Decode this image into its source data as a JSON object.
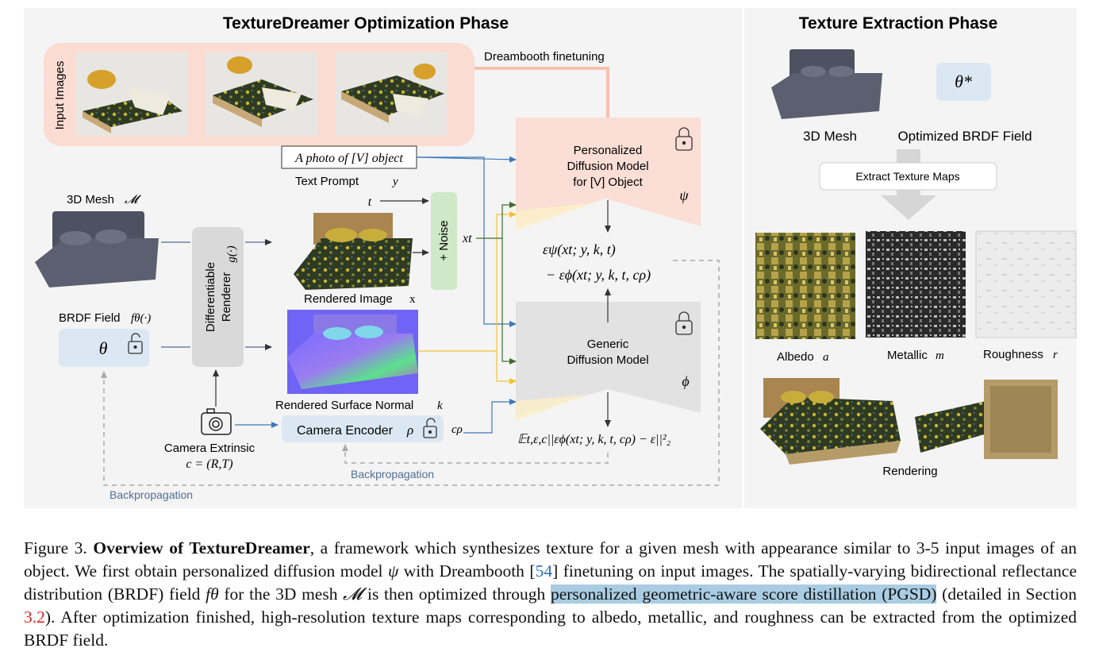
{
  "titles": {
    "left": "TextureDreamer Optimization Phase",
    "right": "Texture Extraction Phase"
  },
  "optimization": {
    "input_images_label": "Input Images",
    "dreambooth_label": "Dreambooth finetuning",
    "prompt_text": "A photo of [V] object",
    "text_prompt_label": "Text Prompt",
    "text_prompt_symbol": "y",
    "mesh_label": "3D Mesh",
    "mesh_symbol": "𝓜",
    "brdf_label": "BRDF Field",
    "brdf_symbol": "fθ(·)",
    "theta": "θ",
    "renderer_line1": "Differentiable",
    "renderer_line2": "Renderer",
    "renderer_symbol": "g(·)",
    "t_label": "t",
    "noise_label": "+ Noise",
    "xt_label": "xt",
    "rendered_image_label": "Rendered Image",
    "rendered_image_symbol": "x",
    "rendered_normal_label": "Rendered Surface Normal",
    "rendered_normal_symbol": "k",
    "camera_label": "Camera Extrinsic",
    "camera_symbol": "c = (R,T)",
    "camera_encoder_label": "Camera Encoder",
    "camera_encoder_symbol": "ρ",
    "c_rho": "cρ",
    "personalized_line1": "Personalized",
    "personalized_line2": "Diffusion Model",
    "personalized_line3": "for [V] Object",
    "psi": "ψ",
    "generic_line1": "Generic",
    "generic_line2": "Diffusion Model",
    "phi": "ϕ",
    "eq1": "εψ(xt; y, k, t)",
    "eq2": "− εϕ(xt; y, k, t, cρ)",
    "loss": "𝔼t,ε,c||εϕ(xt; y, k, t, cρ) − ε||²₂",
    "backprop_inner": "Backpropagation",
    "backprop_outer": "Backpropagation"
  },
  "extraction": {
    "mesh_label": "3D Mesh",
    "theta_star": "θ*",
    "brdf_label": "Optimized BRDF Field",
    "extract_button": "Extract Texture Maps",
    "albedo": "Albedo",
    "albedo_sym": "a",
    "metallic": "Metallic",
    "metallic_sym": "m",
    "roughness": "Roughness",
    "roughness_sym": "r",
    "rendering": "Rendering"
  },
  "caption": {
    "fig": "Figure 3.",
    "title": "Overview of TextureDreamer",
    "p1": ", a framework which synthesizes texture for a given mesh with appearance similar to 3-5 input images of an object. We first obtain personalized diffusion model ",
    "psi": "ψ",
    "p2": " with Dreambooth [",
    "ref54": "54",
    "p3": "] finetuning on input images. The spatially-varying bidirectional reflectance distribution (BRDF) field ",
    "ftheta": "fθ",
    "p4": " for the 3D mesh ",
    "mesh": "𝓜",
    "p5": " is then optimized through ",
    "highlight": "personalized geometric-aware score distillation (PGSD)",
    "p6": " (detailed in Section ",
    "ref32": "3.2",
    "p7": "). After optimization finished, high-resolution texture maps corresponding to albedo, metallic, and roughness can be extracted from the optimized BRDF field."
  },
  "colors": {
    "panel_bg": "#f4f4f4",
    "input_box": "#fbdcd2",
    "personalized": "#fbded5",
    "generic": "#e2e2e2",
    "theta_box": "#dbe8f3",
    "noise_box": "#cfe8c8",
    "arrow_blue": "#3f78b8",
    "arrow_yellow": "#f2c230",
    "arrow_green": "#3e6d2c",
    "highlight": "#a9cce3"
  }
}
